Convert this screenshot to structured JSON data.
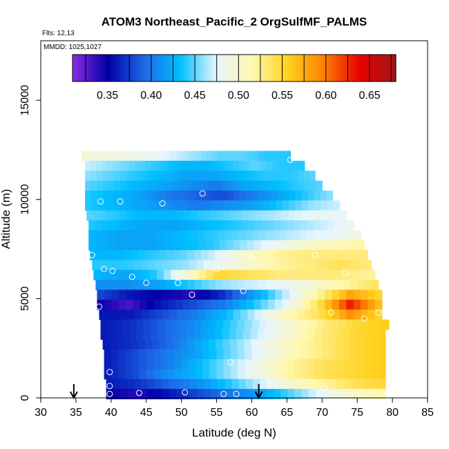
{
  "chart_data": {
    "type": "heatmap",
    "title": "ATOM3 Northeast_Pacific_2 OrgSulfMF_PALMS",
    "subtitle_lines": [
      "Flts: 12,13",
      "MMDD: 1025,1027"
    ],
    "xlabel": "Latitude (deg N)",
    "ylabel": "Altitude (m)",
    "xlim": [
      30,
      85
    ],
    "ylim": [
      0,
      18000
    ],
    "xticks": [
      30,
      35,
      40,
      45,
      50,
      55,
      60,
      65,
      70,
      75,
      80,
      85
    ],
    "yticks": [
      0,
      5000,
      10000,
      15000
    ],
    "colorbar": {
      "range": [
        0.31,
        0.68
      ],
      "tick_values": [
        0.35,
        0.4,
        0.45,
        0.5,
        0.55,
        0.6,
        0.65
      ],
      "tick_labels": [
        "0.35",
        "0.40",
        "0.45",
        "0.50",
        "0.55",
        "0.60",
        "0.65"
      ],
      "colors": [
        "#8a2be2",
        "#0000a8",
        "#1e6ae8",
        "#00bfff",
        "#e6f5ff",
        "#fff8b0",
        "#ffd21e",
        "#ff7f00",
        "#e60000",
        "#a01818"
      ]
    },
    "rows": [
      {
        "alt": 12200,
        "lat_start": 35.8,
        "lat_end": 65.5,
        "values": [
          0.5,
          0.49,
          0.49,
          0.48,
          0.47,
          0.46,
          0.45,
          0.45,
          0.44,
          0.44
        ]
      },
      {
        "alt": 11700,
        "lat_start": 36.3,
        "lat_end": 67.5,
        "values": [
          0.47,
          0.46,
          0.45,
          0.44,
          0.43,
          0.43,
          0.44,
          0.45,
          0.44,
          0.44
        ]
      },
      {
        "alt": 11200,
        "lat_start": 36.3,
        "lat_end": 69.0,
        "values": [
          0.46,
          0.45,
          0.44,
          0.43,
          0.42,
          0.42,
          0.43,
          0.44,
          0.44,
          0.45
        ]
      },
      {
        "alt": 10700,
        "lat_start": 36.3,
        "lat_end": 70.0,
        "values": [
          0.45,
          0.44,
          0.43,
          0.42,
          0.41,
          0.4,
          0.42,
          0.43,
          0.44,
          0.45
        ]
      },
      {
        "alt": 10200,
        "lat_start": 36.3,
        "lat_end": 71.5,
        "values": [
          0.44,
          0.43,
          0.42,
          0.4,
          0.39,
          0.38,
          0.4,
          0.42,
          0.44,
          0.46
        ]
      },
      {
        "alt": 9700,
        "lat_start": 36.3,
        "lat_end": 72.5,
        "values": [
          0.44,
          0.43,
          0.42,
          0.41,
          0.4,
          0.41,
          0.42,
          0.44,
          0.46,
          0.47
        ]
      },
      {
        "alt": 9200,
        "lat_start": 36.5,
        "lat_end": 73.5,
        "values": [
          0.45,
          0.44,
          0.43,
          0.43,
          0.44,
          0.45,
          0.46,
          0.47,
          0.48,
          0.48
        ]
      },
      {
        "alt": 8700,
        "lat_start": 36.8,
        "lat_end": 74.5,
        "values": [
          0.44,
          0.43,
          0.42,
          0.42,
          0.43,
          0.44,
          0.45,
          0.46,
          0.47,
          0.48
        ]
      },
      {
        "alt": 8200,
        "lat_start": 36.8,
        "lat_end": 75.5,
        "values": [
          0.43,
          0.42,
          0.42,
          0.43,
          0.44,
          0.45,
          0.46,
          0.47,
          0.48,
          0.49
        ]
      },
      {
        "alt": 7700,
        "lat_start": 36.8,
        "lat_end": 76.0,
        "values": [
          0.43,
          0.42,
          0.42,
          0.43,
          0.44,
          0.46,
          0.48,
          0.5,
          0.51,
          0.52
        ]
      },
      {
        "alt": 7200,
        "lat_start": 37.0,
        "lat_end": 76.5,
        "values": [
          0.43,
          0.43,
          0.44,
          0.45,
          0.47,
          0.5,
          0.52,
          0.53,
          0.53,
          0.53
        ]
      },
      {
        "alt": 6700,
        "lat_start": 37.3,
        "lat_end": 77.0,
        "values": [
          0.44,
          0.44,
          0.45,
          0.46,
          0.48,
          0.5,
          0.52,
          0.53,
          0.54,
          0.53
        ]
      },
      {
        "alt": 6200,
        "lat_start": 37.5,
        "lat_end": 77.5,
        "values": [
          0.43,
          0.42,
          0.44,
          0.5,
          0.55,
          0.54,
          0.53,
          0.53,
          0.53,
          0.52
        ]
      },
      {
        "alt": 5700,
        "lat_start": 37.8,
        "lat_end": 78.0,
        "values": [
          0.41,
          0.41,
          0.42,
          0.44,
          0.46,
          0.47,
          0.48,
          0.5,
          0.52,
          0.54
        ]
      },
      {
        "alt": 5200,
        "lat_start": 38.0,
        "lat_end": 78.5,
        "values": [
          0.38,
          0.36,
          0.35,
          0.34,
          0.37,
          0.42,
          0.47,
          0.52,
          0.58,
          0.55
        ]
      },
      {
        "alt": 4700,
        "lat_start": 38.0,
        "lat_end": 78.5,
        "values": [
          0.35,
          0.33,
          0.36,
          0.38,
          0.4,
          0.44,
          0.48,
          0.54,
          0.63,
          0.56
        ]
      },
      {
        "alt": 4200,
        "lat_start": 38.3,
        "lat_end": 78.5,
        "values": [
          0.36,
          0.36,
          0.38,
          0.4,
          0.43,
          0.47,
          0.51,
          0.54,
          0.59,
          0.55
        ]
      },
      {
        "alt": 3700,
        "lat_start": 38.5,
        "lat_end": 79.5,
        "values": [
          0.36,
          0.37,
          0.39,
          0.41,
          0.44,
          0.47,
          0.5,
          0.53,
          0.55,
          0.56
        ]
      },
      {
        "alt": 3200,
        "lat_start": 38.5,
        "lat_end": 79.0,
        "values": [
          0.36,
          0.37,
          0.39,
          0.41,
          0.44,
          0.47,
          0.5,
          0.53,
          0.55,
          0.56
        ]
      },
      {
        "alt": 2700,
        "lat_start": 38.8,
        "lat_end": 79.0,
        "values": [
          0.36,
          0.37,
          0.39,
          0.42,
          0.45,
          0.48,
          0.51,
          0.53,
          0.55,
          0.56
        ]
      },
      {
        "alt": 2200,
        "lat_start": 39.0,
        "lat_end": 79.0,
        "values": [
          0.36,
          0.38,
          0.4,
          0.42,
          0.45,
          0.48,
          0.51,
          0.53,
          0.55,
          0.56
        ]
      },
      {
        "alt": 1700,
        "lat_start": 39.0,
        "lat_end": 79.0,
        "values": [
          0.36,
          0.38,
          0.4,
          0.43,
          0.46,
          0.49,
          0.52,
          0.54,
          0.55,
          0.56
        ]
      },
      {
        "alt": 1200,
        "lat_start": 39.0,
        "lat_end": 79.0,
        "values": [
          0.36,
          0.38,
          0.41,
          0.43,
          0.46,
          0.49,
          0.52,
          0.54,
          0.55,
          0.56
        ]
      },
      {
        "alt": 700,
        "lat_start": 39.3,
        "lat_end": 79.0,
        "values": [
          0.36,
          0.37,
          0.39,
          0.41,
          0.44,
          0.47,
          0.5,
          0.52,
          0.54,
          0.55
        ]
      },
      {
        "alt": 200,
        "lat_start": 39.3,
        "lat_end": 79.0,
        "values": [
          0.35,
          0.34,
          0.36,
          0.38,
          0.4,
          0.42,
          0.45,
          0.48,
          0.5,
          0.52
        ]
      }
    ],
    "points": [
      {
        "lat": 65.5,
        "alt": 12000
      },
      {
        "lat": 72.0,
        "alt": 10300
      },
      {
        "lat": 53.0,
        "alt": 10300
      },
      {
        "lat": 38.5,
        "alt": 9900
      },
      {
        "lat": 41.3,
        "alt": 9900
      },
      {
        "lat": 47.3,
        "alt": 9800
      },
      {
        "lat": 37.3,
        "alt": 7200
      },
      {
        "lat": 60.0,
        "alt": 7100
      },
      {
        "lat": 69.0,
        "alt": 7200
      },
      {
        "lat": 39.0,
        "alt": 6500
      },
      {
        "lat": 40.2,
        "alt": 6400
      },
      {
        "lat": 55.0,
        "alt": 6500
      },
      {
        "lat": 43.0,
        "alt": 6100
      },
      {
        "lat": 45.0,
        "alt": 5800
      },
      {
        "lat": 49.5,
        "alt": 5800
      },
      {
        "lat": 73.3,
        "alt": 6300
      },
      {
        "lat": 51.5,
        "alt": 5200
      },
      {
        "lat": 58.8,
        "alt": 5400
      },
      {
        "lat": 38.3,
        "alt": 4600
      },
      {
        "lat": 71.3,
        "alt": 4300
      },
      {
        "lat": 76.0,
        "alt": 4000
      },
      {
        "lat": 78.0,
        "alt": 4300
      },
      {
        "lat": 57.0,
        "alt": 1800
      },
      {
        "lat": 39.8,
        "alt": 1300
      },
      {
        "lat": 39.8,
        "alt": 600
      },
      {
        "lat": 70.3,
        "alt": 500
      },
      {
        "lat": 44.0,
        "alt": 250
      },
      {
        "lat": 50.5,
        "alt": 280
      },
      {
        "lat": 56.0,
        "alt": 200
      },
      {
        "lat": 57.8,
        "alt": 200
      },
      {
        "lat": 39.8,
        "alt": 200
      },
      {
        "lat": 75.5,
        "alt": 200
      },
      {
        "lat": 78.5,
        "alt": 200
      }
    ],
    "arrows": [
      34.7,
      61.0
    ]
  }
}
